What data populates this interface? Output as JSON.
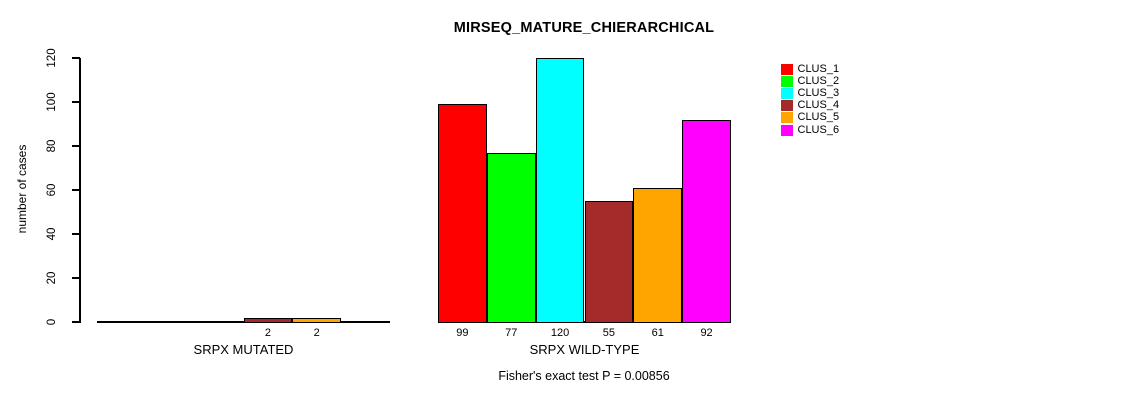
{
  "title": "MIRSEQ_MATURE_CHIERARCHICAL",
  "chart_data": {
    "type": "bar",
    "title": "MIRSEQ_MATURE_CHIERARCHICAL",
    "ylabel": "number of cases",
    "ylim": [
      0,
      120
    ],
    "yticks": [
      0,
      20,
      40,
      60,
      80,
      100,
      120
    ],
    "grid": false,
    "legend_position": "right",
    "categories": [
      "CLUS_1",
      "CLUS_2",
      "CLUS_3",
      "CLUS_4",
      "CLUS_5",
      "CLUS_6"
    ],
    "colors": [
      "#ff0000",
      "#00ff00",
      "#00ffff",
      "#a52a2a",
      "#ffa500",
      "#ff00ff"
    ],
    "groups": [
      {
        "label": "SRPX MUTATED",
        "values": [
          0,
          0,
          0,
          2,
          2,
          0
        ]
      },
      {
        "label": "SRPX WILD-TYPE",
        "values": [
          99,
          77,
          120,
          55,
          61,
          92
        ]
      }
    ],
    "bar_value_labels_shown": true,
    "annotation": "Fisher's exact test P = 0.00856"
  },
  "legend": {
    "entries": [
      {
        "label": "CLUS_1",
        "color": "#ff0000"
      },
      {
        "label": "CLUS_2",
        "color": "#00ff00"
      },
      {
        "label": "CLUS_3",
        "color": "#00ffff"
      },
      {
        "label": "CLUS_4",
        "color": "#a52a2a"
      },
      {
        "label": "CLUS_5",
        "color": "#ffa500"
      },
      {
        "label": "CLUS_6",
        "color": "#ff00ff"
      }
    ]
  }
}
